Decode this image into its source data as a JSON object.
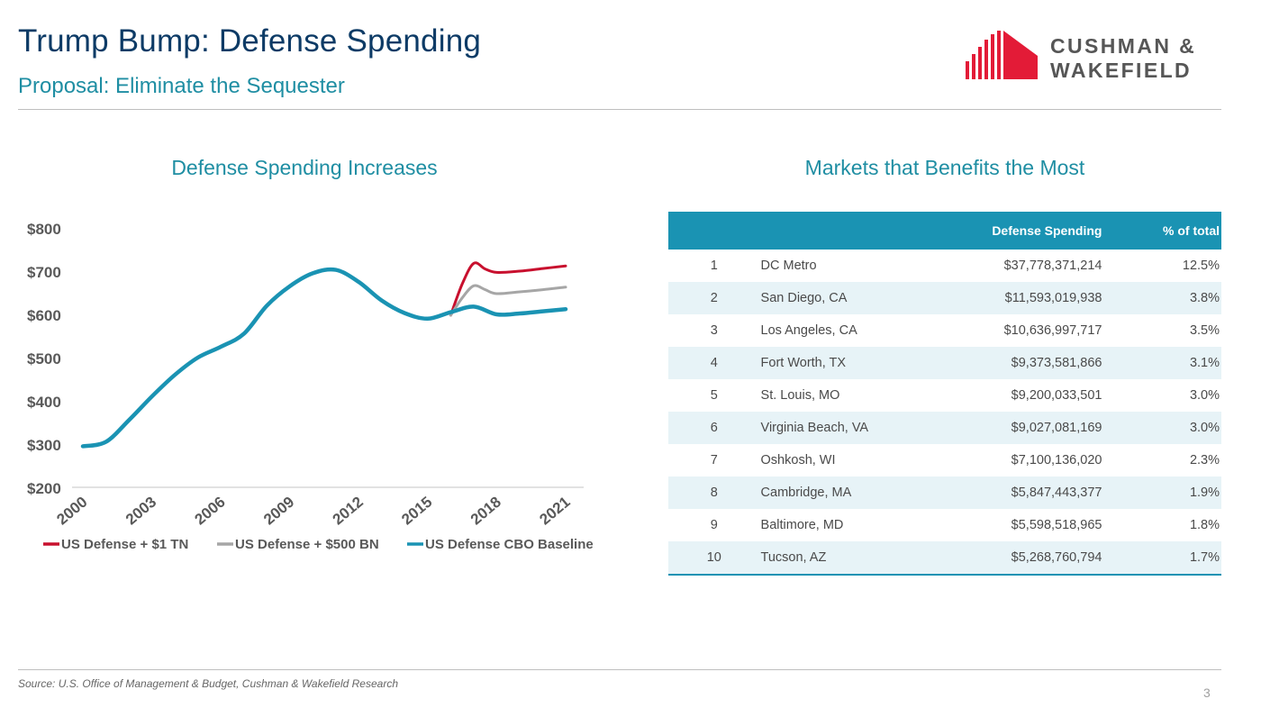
{
  "header": {
    "title": "Trump Bump:  Defense Spending",
    "subtitle": "Proposal:  Eliminate the Sequester"
  },
  "logo": {
    "line1": "CUSHMAN &",
    "line2": "WAKEFIELD",
    "brand_red": "#e31b37",
    "text_color": "#565656"
  },
  "left_panel_title": "Defense Spending Increases",
  "right_panel_title": "Markets that Benefits the Most",
  "chart_data": {
    "type": "line",
    "x_tick_labels": [
      "2000",
      "2003",
      "2006",
      "2009",
      "2012",
      "2015",
      "2018",
      "2021"
    ],
    "y_tick_labels": [
      "$800",
      "$700",
      "$600",
      "$500",
      "$400",
      "$300",
      "$200"
    ],
    "ylim": [
      200,
      800
    ],
    "xlim": [
      2000,
      2021
    ],
    "grid": false,
    "legend_position": "bottom",
    "series": [
      {
        "name": "US Defense + $1 TN",
        "color": "#c8102e",
        "x": [
          2016,
          2016.5,
          2017,
          2017.5,
          2018,
          2019,
          2020,
          2021
        ],
        "y": [
          598,
          670,
          718,
          705,
          697,
          700,
          706,
          712
        ]
      },
      {
        "name": "US Defense + $500 BN",
        "color": "#a6a6a6",
        "x": [
          2016,
          2016.5,
          2017,
          2017.5,
          2018,
          2019,
          2020,
          2021
        ],
        "y": [
          598,
          638,
          666,
          657,
          648,
          652,
          657,
          663
        ]
      },
      {
        "name": "US Defense CBO Baseline",
        "color": "#1a93b3",
        "x": [
          2000,
          2001,
          2002,
          2003,
          2004,
          2005,
          2006,
          2007,
          2008,
          2009,
          2010,
          2011,
          2012,
          2013,
          2014,
          2015,
          2016,
          2017,
          2018,
          2019,
          2020,
          2021
        ],
        "y": [
          295,
          305,
          355,
          410,
          460,
          500,
          525,
          555,
          620,
          665,
          695,
          703,
          675,
          632,
          603,
          590,
          605,
          618,
          600,
          602,
          607,
          612
        ]
      }
    ]
  },
  "table": {
    "headers": [
      "",
      "",
      "Defense Spending",
      "% of total"
    ],
    "rows": [
      [
        "1",
        "DC Metro",
        "$37,778,371,214",
        "12.5%"
      ],
      [
        "2",
        "San Diego, CA",
        "$11,593,019,938",
        "3.8%"
      ],
      [
        "3",
        "Los Angeles, CA",
        "$10,636,997,717",
        "3.5%"
      ],
      [
        "4",
        "Fort Worth, TX",
        "$9,373,581,866",
        "3.1%"
      ],
      [
        "5",
        "St. Louis, MO",
        "$9,200,033,501",
        "3.0%"
      ],
      [
        "6",
        "Virginia Beach, VA",
        "$9,027,081,169",
        "3.0%"
      ],
      [
        "7",
        "Oshkosh, WI",
        "$7,100,136,020",
        "2.3%"
      ],
      [
        "8",
        "Cambridge, MA",
        "$5,847,443,377",
        "1.9%"
      ],
      [
        "9",
        "Baltimore, MD",
        "$5,598,518,965",
        "1.8%"
      ],
      [
        "10",
        "Tucson, AZ",
        "$5,268,760,794",
        "1.7%"
      ]
    ]
  },
  "footer": {
    "source": "Source: U.S. Office of Management & Budget, Cushman & Wakefield Research",
    "page_number": "3"
  }
}
